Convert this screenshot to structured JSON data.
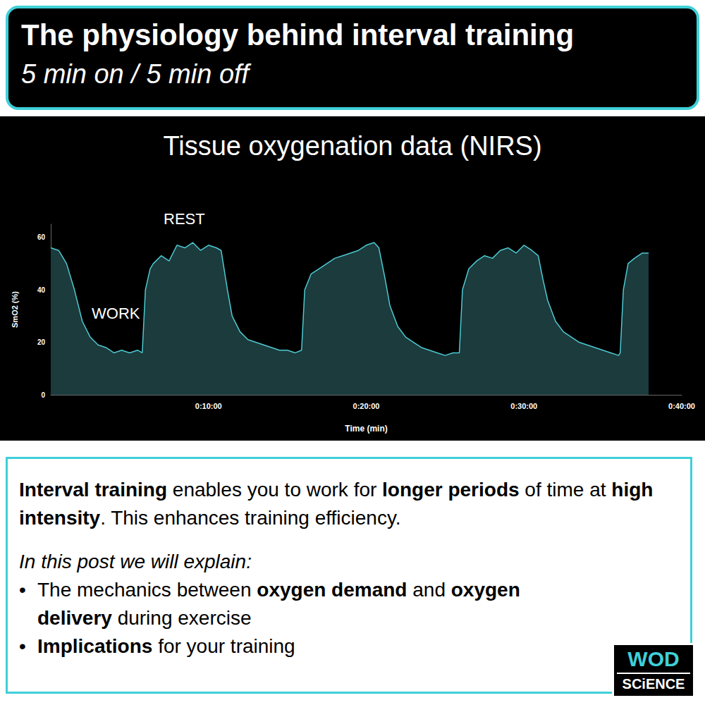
{
  "header": {
    "title": "The physiology behind interval training",
    "subtitle": "5 min on / 5 min off"
  },
  "chart_data": {
    "type": "area",
    "title": "Tissue oxygenation data (NIRS)",
    "x_label": "Time (min)",
    "y_label": "SmO2 (%)",
    "annotations": [
      "WORK",
      "REST"
    ],
    "x": [
      0,
      0.5,
      1,
      1.5,
      2,
      2.5,
      3,
      3.5,
      4,
      4.5,
      5,
      5.5,
      5.8,
      6.0,
      6.3,
      6.5,
      7,
      7.5,
      8,
      8.5,
      9,
      9.5,
      10,
      10.5,
      10.8,
      11.2,
      11.5,
      12,
      12.5,
      13,
      13.5,
      14,
      14.5,
      15,
      15.5,
      15.9,
      16.1,
      16.5,
      17,
      17.5,
      18,
      18.5,
      19,
      19.5,
      20,
      20.5,
      20.8,
      21.2,
      21.5,
      22,
      22.5,
      23,
      23.5,
      24,
      24.5,
      25,
      25.5,
      25.9,
      26.1,
      26.5,
      27,
      27.5,
      28,
      28.5,
      29,
      29.5,
      30,
      30.5,
      30.9,
      31.2,
      31.5,
      32,
      32.5,
      33,
      33.5,
      34,
      34.5,
      35,
      35.5,
      36,
      36.1,
      36.3,
      36.6,
      37,
      37.5,
      37.9
    ],
    "values": [
      56,
      55,
      50,
      40,
      28,
      22,
      19,
      18,
      16,
      17,
      16,
      17,
      16,
      40,
      48,
      50,
      53,
      51,
      57,
      56,
      58,
      55,
      57,
      56,
      55,
      40,
      30,
      24,
      21,
      20,
      19,
      18,
      17,
      17,
      16,
      17,
      40,
      46,
      48,
      50,
      52,
      53,
      54,
      55,
      57,
      58,
      56,
      44,
      34,
      26,
      22,
      20,
      18,
      17,
      16,
      15,
      16,
      16,
      40,
      48,
      51,
      53,
      52,
      55,
      56,
      54,
      57,
      55,
      53,
      44,
      36,
      28,
      24,
      22,
      20,
      19,
      18,
      17,
      16,
      15,
      16,
      40,
      50,
      52,
      54,
      54
    ],
    "color": "#4ec9d2",
    "xlim": [
      0,
      40
    ],
    "xticks": [
      {
        "value": 10,
        "label": "0:10:00"
      },
      {
        "value": 20,
        "label": "0:20:00"
      },
      {
        "value": 30,
        "label": "0:30:00"
      },
      {
        "value": 40,
        "label": "0:40:00"
      }
    ],
    "ylim": [
      0,
      65
    ],
    "yticks": [
      0,
      20,
      40,
      60
    ],
    "grid": false
  },
  "text_box": {
    "intro": [
      {
        "text": "Interval training",
        "bold": true
      },
      {
        "text": " enables you to work for "
      },
      {
        "text": "longer periods",
        "bold": true
      },
      {
        "text": " of time at "
      },
      {
        "text": "high intensity",
        "bold": true
      },
      {
        "text": ". This enhances training efficiency."
      }
    ],
    "lead": "In this post we will explain:",
    "bullets": [
      [
        {
          "text": "The mechanics between "
        },
        {
          "text": "oxygen demand",
          "bold": true
        },
        {
          "text": " and "
        },
        {
          "text": "oxygen delivery",
          "bold": true
        },
        {
          "text": " during exercise"
        }
      ],
      [
        {
          "text": "Implications",
          "bold": true
        },
        {
          "text": " for your training"
        }
      ]
    ]
  },
  "logo": [
    "WOD",
    "SCiENCE"
  ]
}
